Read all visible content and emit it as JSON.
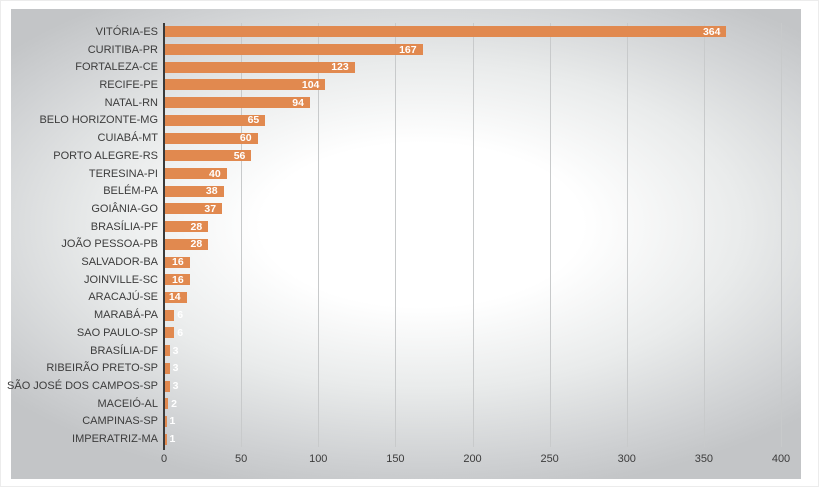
{
  "chart_data": {
    "type": "bar",
    "orientation": "horizontal",
    "title": "",
    "xlabel": "",
    "ylabel": "",
    "categories": [
      "VITÓRIA-ES",
      "CURITIBA-PR",
      "FORTALEZA-CE",
      "RECIFE-PE",
      "NATAL-RN",
      "BELO HORIZONTE-MG",
      "CUIABÁ-MT",
      "PORTO ALEGRE-RS",
      "TERESINA-PI",
      "BELÉM-PA",
      "GOIÂNIA-GO",
      "BRASÍLIA-PF",
      "JOÃO PESSOA-PB",
      "SALVADOR-BA",
      "JOINVILLE-SC",
      "ARACAJÚ-SE",
      "MARABÁ-PA",
      "SAO PAULO-SP",
      "BRASÍLIA-DF",
      "RIBEIRÃO PRETO-SP",
      "SÃO JOSÉ DOS CAMPOS-SP",
      "MACEIÓ-AL",
      "CAMPINAS-SP",
      "IMPERATRIZ-MA"
    ],
    "values": [
      364,
      167,
      123,
      104,
      94,
      65,
      60,
      56,
      40,
      38,
      37,
      28,
      28,
      16,
      16,
      14,
      6,
      6,
      3,
      3,
      3,
      2,
      1,
      1
    ],
    "xlim": [
      0,
      400
    ],
    "xticks": [
      0,
      50,
      100,
      150,
      200,
      250,
      300,
      350,
      400
    ],
    "grid": true,
    "legend": false,
    "data_labels": true
  },
  "colors": {
    "bar": "#E1894F",
    "data_label": "#FFFFFF",
    "axis_line": "#3A3A3A",
    "gridline": "#C8CACB",
    "text": "#3C3C3C"
  }
}
